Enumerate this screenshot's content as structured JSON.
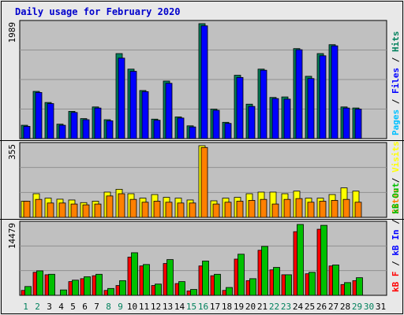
{
  "title": "Daily usage for February 2020",
  "colors": {
    "background": "#e8e8e8",
    "panel": "#c0c0c0",
    "grid": "#909090",
    "title": "#0000cc",
    "hits": "#00805c",
    "files": "#0000ff",
    "pages": "#00c0ff",
    "visits": "#ffff00",
    "sites": "#ff8000",
    "kbin": "#00c000",
    "kbout": "#ff0000",
    "weekday_label": "#000000",
    "weekend_label": "#00805c",
    "separator": "#000000",
    "right_label_slash": "#000000"
  },
  "right_labels": {
    "top": [
      {
        "text": "Pages",
        "color": "#00c0ff"
      },
      {
        "text": " / ",
        "color": "#000000"
      },
      {
        "text": "Files",
        "color": "#0000ff"
      },
      {
        "text": " / ",
        "color": "#000000"
      },
      {
        "text": "Hits",
        "color": "#00805c"
      }
    ],
    "middle": [
      {
        "text": "Sites",
        "color": "#ff8000"
      },
      {
        "text": " / ",
        "color": "#000000"
      },
      {
        "text": "Visits",
        "color": "#ffff00"
      }
    ],
    "bottom": [
      {
        "text": "kB F",
        "color": "#ff0000"
      },
      {
        "text": " / ",
        "color": "#000000"
      },
      {
        "text": "kB In",
        "color": "#0000ff"
      },
      {
        "text": " / ",
        "color": "#000000"
      },
      {
        "text": "kB Out",
        "color": "#00c000"
      }
    ]
  },
  "chart_data": [
    {
      "type": "bar",
      "name": "hits-files",
      "ymax_label": "1989",
      "ylim": [
        0,
        1989
      ],
      "categories": [
        "1",
        "2",
        "3",
        "4",
        "5",
        "6",
        "7",
        "8",
        "9",
        "10",
        "11",
        "12",
        "13",
        "14",
        "15",
        "16",
        "17",
        "18",
        "19",
        "20",
        "21",
        "22",
        "23",
        "24",
        "25",
        "26",
        "27",
        "28",
        "29",
        "30",
        "31"
      ],
      "series": [
        {
          "name": "Hits",
          "values": [
            231,
            817,
            625,
            250,
            471,
            346,
            548,
            327,
            1471,
            1202,
            832,
            337,
            995,
            375,
            221,
            1989,
            510,
            282,
            1096,
            596,
            1202,
            712,
            721,
            1557,
            1078,
            1471,
            1625,
            548,
            530,
            0,
            0
          ]
        },
        {
          "name": "Files",
          "values": [
            212,
            798,
            606,
            231,
            452,
            327,
            529,
            308,
            1392,
            1164,
            813,
            318,
            957,
            356,
            202,
            1951,
            490,
            263,
            1058,
            557,
            1183,
            693,
            683,
            1538,
            1039,
            1433,
            1605,
            529,
            510,
            0,
            0
          ]
        }
      ]
    },
    {
      "type": "bar",
      "name": "visits-sites",
      "ymax_label": "355",
      "ylim": [
        0,
        355
      ],
      "categories": [
        "1",
        "2",
        "3",
        "4",
        "5",
        "6",
        "7",
        "8",
        "9",
        "10",
        "11",
        "12",
        "13",
        "14",
        "15",
        "16",
        "17",
        "18",
        "19",
        "20",
        "21",
        "22",
        "23",
        "24",
        "25",
        "26",
        "27",
        "28",
        "29",
        "30",
        "31"
      ],
      "series": [
        {
          "name": "Visits",
          "values": [
            80,
            117,
            95,
            90,
            86,
            73,
            80,
            125,
            139,
            117,
            95,
            113,
            99,
            95,
            86,
            355,
            82,
            95,
            99,
            117,
            125,
            125,
            117,
            130,
            95,
            95,
            113,
            146,
            130,
            0,
            0
          ]
        },
        {
          "name": "Sites",
          "values": [
            80,
            89,
            71,
            71,
            66,
            62,
            66,
            106,
            117,
            89,
            75,
            80,
            75,
            71,
            71,
            346,
            66,
            75,
            80,
            84,
            89,
            66,
            89,
            93,
            75,
            80,
            84,
            89,
            75,
            0,
            0
          ]
        }
      ]
    },
    {
      "type": "bar",
      "name": "kbytes",
      "ymax_label": "14479",
      "ylim": [
        0,
        14479
      ],
      "categories": [
        "1",
        "2",
        "3",
        "4",
        "5",
        "6",
        "7",
        "8",
        "9",
        "10",
        "11",
        "12",
        "13",
        "14",
        "15",
        "16",
        "17",
        "18",
        "19",
        "20",
        "21",
        "22",
        "23",
        "24",
        "25",
        "26",
        "27",
        "28",
        "29",
        "30",
        "31"
      ],
      "series": [
        {
          "name": "kB F",
          "values": [
            1000,
            4700,
            4200,
            0,
            2800,
            3400,
            4000,
            1000,
            2000,
            7800,
            6000,
            2000,
            6500,
            2400,
            900,
            6000,
            4000,
            1000,
            7400,
            3000,
            9200,
            5200,
            4200,
            13000,
            4400,
            13500,
            6000,
            2200,
            3000,
            0,
            0
          ]
        },
        {
          "name": "kB In",
          "values": [
            0,
            0,
            0,
            0,
            0,
            0,
            0,
            0,
            0,
            0,
            0,
            0,
            0,
            0,
            0,
            0,
            0,
            0,
            0,
            0,
            0,
            0,
            0,
            0,
            0,
            0,
            0,
            0,
            0,
            0,
            0
          ]
        },
        {
          "name": "kB Out",
          "values": [
            1800,
            5000,
            4300,
            1100,
            3100,
            3800,
            4300,
            1400,
            3000,
            8700,
            6300,
            2300,
            7300,
            2800,
            1200,
            7000,
            4300,
            1600,
            8400,
            3400,
            10000,
            5700,
            4200,
            14479,
            4700,
            14300,
            6200,
            2600,
            3600,
            0,
            0
          ]
        }
      ]
    }
  ],
  "days": [
    "1",
    "2",
    "3",
    "4",
    "5",
    "6",
    "7",
    "8",
    "9",
    "10",
    "11",
    "12",
    "13",
    "14",
    "15",
    "16",
    "17",
    "18",
    "19",
    "20",
    "21",
    "22",
    "23",
    "24",
    "25",
    "26",
    "27",
    "28",
    "29",
    "30",
    "31"
  ],
  "weekend_days": [
    "1",
    "2",
    "8",
    "9",
    "15",
    "16",
    "22",
    "23",
    "29",
    "30"
  ]
}
